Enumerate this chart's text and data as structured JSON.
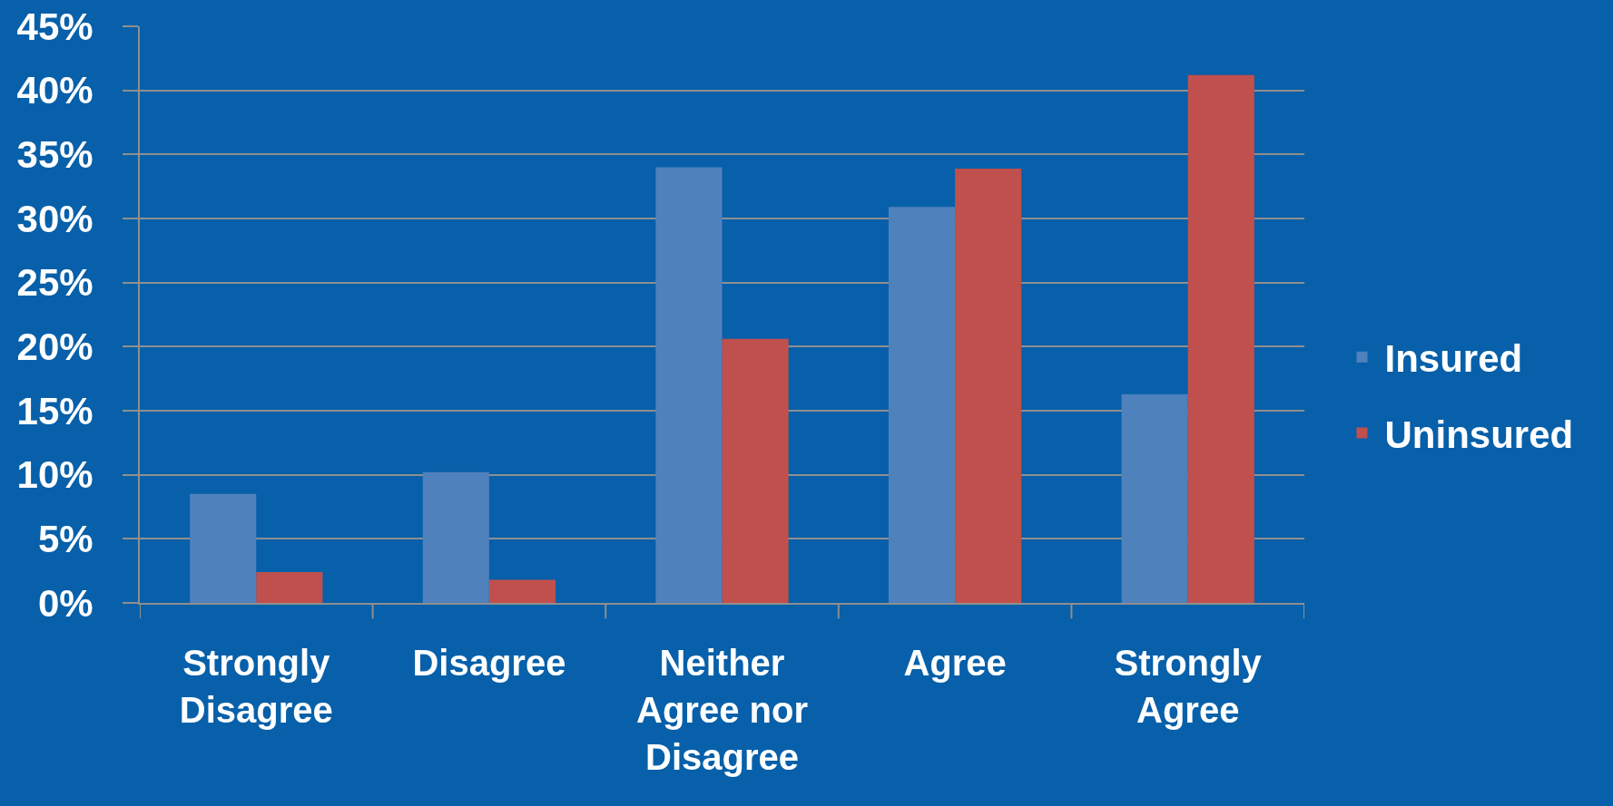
{
  "chart_data": {
    "type": "bar",
    "categories": [
      "Strongly Disagree",
      "Disagree",
      "Neither Agree nor Disagree",
      "Agree",
      "Strongly Agree"
    ],
    "series": [
      {
        "name": "Insured",
        "color": "#4f81bd",
        "values": [
          8.5,
          10.2,
          34,
          30.9,
          16.3
        ]
      },
      {
        "name": "Uninsured",
        "color": "#c0504d",
        "values": [
          2.4,
          1.8,
          20.6,
          33.9,
          41.2
        ]
      }
    ],
    "ylim": [
      0,
      45
    ],
    "yticks": [
      {
        "value": 0,
        "label": "0%"
      },
      {
        "value": 5,
        "label": "5%"
      },
      {
        "value": 10,
        "label": "10%"
      },
      {
        "value": 15,
        "label": "15%"
      },
      {
        "value": 20,
        "label": "20%"
      },
      {
        "value": 25,
        "label": "25%"
      },
      {
        "value": 30,
        "label": "30%"
      },
      {
        "value": 35,
        "label": "35%"
      },
      {
        "value": 40,
        "label": "40%"
      },
      {
        "value": 45,
        "label": "45%"
      }
    ],
    "grid": "y",
    "legend": "right"
  }
}
